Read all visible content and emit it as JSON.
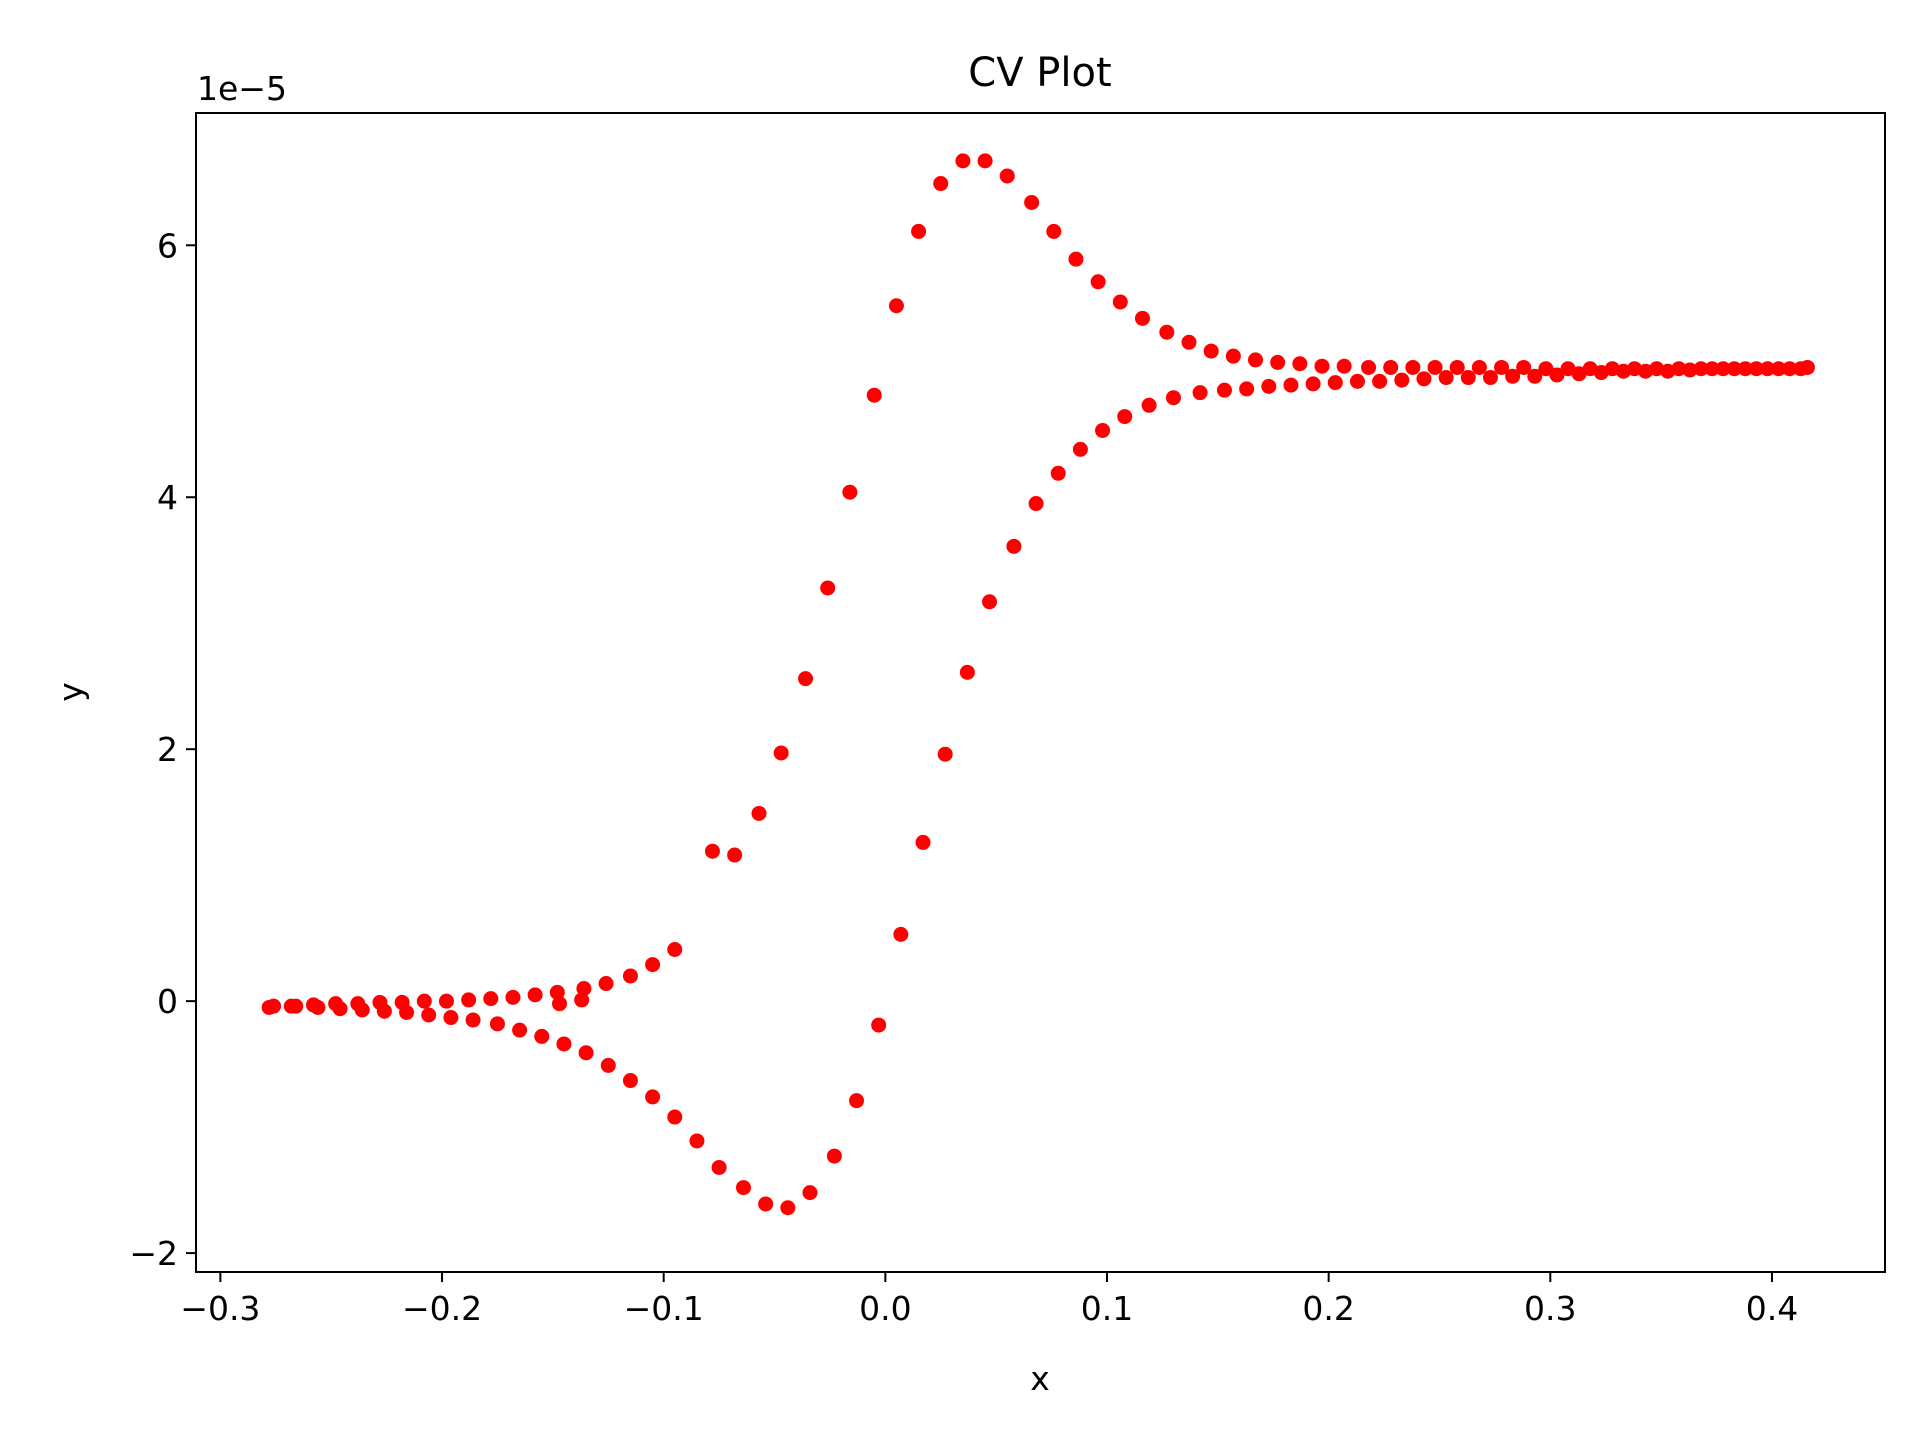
{
  "chart_data": {
    "type": "scatter",
    "title": "CV Plot",
    "xlabel": "x",
    "ylabel": "y",
    "offset_text": "1e−5",
    "y_scale_exponent": -5,
    "xlim": [
      -0.311,
      0.451
    ],
    "ylim": [
      -2.15,
      7.05
    ],
    "xticks": [
      -0.3,
      -0.2,
      -0.1,
      0.0,
      0.1,
      0.2,
      0.3,
      0.4
    ],
    "xtick_labels": [
      "−0.3",
      "−0.2",
      "−0.1",
      "0.0",
      "0.1",
      "0.2",
      "0.3",
      "0.4"
    ],
    "yticks": [
      -2,
      0,
      2,
      4,
      6
    ],
    "ytick_labels": [
      "−2",
      "0",
      "2",
      "4",
      "6"
    ],
    "grid": false,
    "legend": "none",
    "marker_color": "#ff0000",
    "series": [
      {
        "points": [
          [
            -0.278,
            -0.05
          ],
          [
            -0.268,
            -0.04
          ],
          [
            -0.258,
            -0.03
          ],
          [
            -0.248,
            -0.02
          ],
          [
            -0.238,
            -0.02
          ],
          [
            -0.228,
            -0.01
          ],
          [
            -0.218,
            -0.01
          ],
          [
            -0.208,
            0.0
          ],
          [
            -0.198,
            0.0
          ],
          [
            -0.188,
            0.01
          ],
          [
            -0.178,
            0.02
          ],
          [
            -0.168,
            0.03
          ],
          [
            -0.158,
            0.05
          ],
          [
            -0.148,
            0.07
          ],
          [
            -0.136,
            0.1
          ],
          [
            -0.126,
            0.14
          ],
          [
            -0.115,
            0.2
          ],
          [
            -0.105,
            0.29
          ],
          [
            -0.095,
            0.41
          ],
          [
            -0.078,
            1.19
          ],
          [
            -0.068,
            1.16
          ],
          [
            -0.057,
            1.49
          ],
          [
            -0.047,
            1.97
          ],
          [
            -0.036,
            2.56
          ],
          [
            -0.026,
            3.28
          ],
          [
            -0.016,
            4.04
          ],
          [
            -0.005,
            4.81
          ],
          [
            0.005,
            5.52
          ],
          [
            0.015,
            6.11
          ],
          [
            0.025,
            6.49
          ],
          [
            0.035,
            6.67
          ],
          [
            0.045,
            6.67
          ],
          [
            0.055,
            6.55
          ],
          [
            0.066,
            6.34
          ],
          [
            0.076,
            6.11
          ],
          [
            0.086,
            5.89
          ],
          [
            0.096,
            5.71
          ],
          [
            0.106,
            5.55
          ],
          [
            0.116,
            5.42
          ],
          [
            0.127,
            5.31
          ],
          [
            0.137,
            5.23
          ],
          [
            0.147,
            5.16
          ],
          [
            0.157,
            5.12
          ],
          [
            0.167,
            5.09
          ],
          [
            0.177,
            5.07
          ],
          [
            0.187,
            5.06
          ],
          [
            0.197,
            5.04
          ],
          [
            0.207,
            5.04
          ],
          [
            0.218,
            5.03
          ],
          [
            0.228,
            5.03
          ],
          [
            0.238,
            5.03
          ],
          [
            0.248,
            5.03
          ],
          [
            0.258,
            5.03
          ],
          [
            0.268,
            5.03
          ],
          [
            0.278,
            5.03
          ],
          [
            0.288,
            5.03
          ],
          [
            0.298,
            5.02
          ],
          [
            0.308,
            5.02
          ],
          [
            0.318,
            5.02
          ],
          [
            0.328,
            5.02
          ],
          [
            0.338,
            5.02
          ],
          [
            0.348,
            5.02
          ],
          [
            0.358,
            5.02
          ],
          [
            0.368,
            5.02
          ],
          [
            0.378,
            5.02
          ],
          [
            0.388,
            5.02
          ],
          [
            0.398,
            5.02
          ],
          [
            0.408,
            5.02
          ],
          [
            0.416,
            5.03
          ],
          [
            0.413,
            5.02
          ],
          [
            0.403,
            5.02
          ],
          [
            0.393,
            5.02
          ],
          [
            0.383,
            5.02
          ],
          [
            0.373,
            5.02
          ],
          [
            0.363,
            5.01
          ],
          [
            0.353,
            5.0
          ],
          [
            0.343,
            5.0
          ],
          [
            0.333,
            5.0
          ],
          [
            0.323,
            4.99
          ],
          [
            0.313,
            4.98
          ],
          [
            0.303,
            4.97
          ],
          [
            0.293,
            4.96
          ],
          [
            0.283,
            4.96
          ],
          [
            0.273,
            4.95
          ],
          [
            0.263,
            4.95
          ],
          [
            0.253,
            4.95
          ],
          [
            0.243,
            4.94
          ],
          [
            0.233,
            4.93
          ],
          [
            0.223,
            4.92
          ],
          [
            0.213,
            4.92
          ],
          [
            0.203,
            4.91
          ],
          [
            0.193,
            4.9
          ],
          [
            0.183,
            4.89
          ],
          [
            0.173,
            4.88
          ],
          [
            0.163,
            4.86
          ],
          [
            0.153,
            4.85
          ],
          [
            0.142,
            4.83
          ],
          [
            0.13,
            4.79
          ],
          [
            0.119,
            4.73
          ],
          [
            0.108,
            4.64
          ],
          [
            0.098,
            4.53
          ],
          [
            0.088,
            4.38
          ],
          [
            0.078,
            4.19
          ],
          [
            0.068,
            3.95
          ],
          [
            0.058,
            3.61
          ],
          [
            0.047,
            3.17
          ],
          [
            0.037,
            2.61
          ],
          [
            0.027,
            1.96
          ],
          [
            0.017,
            1.26
          ],
          [
            0.007,
            0.53
          ],
          [
            -0.003,
            -0.19
          ],
          [
            -0.013,
            -0.79
          ],
          [
            -0.023,
            -1.23
          ],
          [
            -0.034,
            -1.52
          ],
          [
            -0.044,
            -1.64
          ],
          [
            -0.054,
            -1.61
          ],
          [
            -0.064,
            -1.48
          ],
          [
            -0.075,
            -1.32
          ],
          [
            -0.085,
            -1.11
          ],
          [
            -0.095,
            -0.92
          ],
          [
            -0.105,
            -0.76
          ],
          [
            -0.115,
            -0.63
          ],
          [
            -0.125,
            -0.51
          ],
          [
            -0.135,
            -0.41
          ],
          [
            -0.145,
            -0.34
          ],
          [
            -0.155,
            -0.28
          ],
          [
            -0.165,
            -0.23
          ],
          [
            -0.175,
            -0.18
          ],
          [
            -0.186,
            -0.15
          ],
          [
            -0.196,
            -0.13
          ],
          [
            -0.206,
            -0.11
          ],
          [
            -0.216,
            -0.09
          ],
          [
            -0.226,
            -0.08
          ],
          [
            -0.236,
            -0.07
          ],
          [
            -0.246,
            -0.06
          ],
          [
            -0.256,
            -0.05
          ],
          [
            -0.266,
            -0.04
          ],
          [
            -0.276,
            -0.04
          ],
          [
            -0.147,
            -0.02
          ],
          [
            -0.137,
            0.01
          ]
        ]
      }
    ]
  }
}
